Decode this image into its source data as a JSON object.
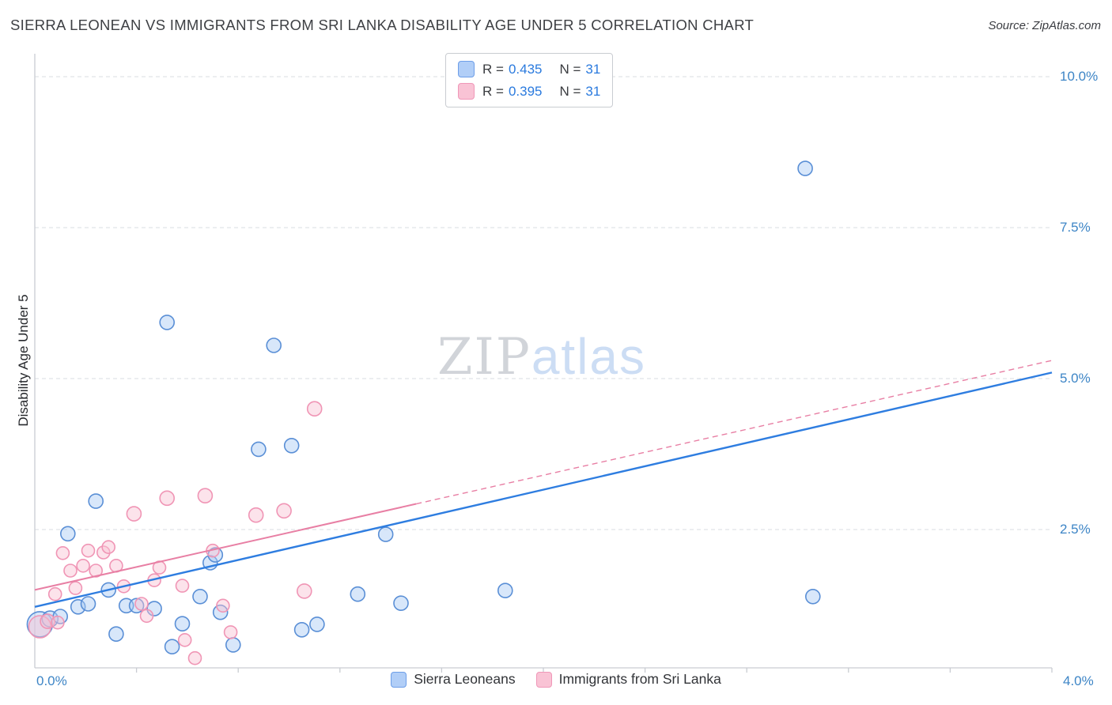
{
  "header": {
    "title": "SIERRA LEONEAN VS IMMIGRANTS FROM SRI LANKA DISABILITY AGE UNDER 5 CORRELATION CHART",
    "source": "Source: ZipAtlas.com"
  },
  "watermark": {
    "zip": "ZIP",
    "atlas": "atlas"
  },
  "axes": {
    "y_label": "Disability Age Under 5",
    "y_ticks": [
      {
        "label": "10.0%",
        "value": 10
      },
      {
        "label": "7.5%",
        "value": 7.5
      },
      {
        "label": "5.0%",
        "value": 5
      },
      {
        "label": "2.5%",
        "value": 2.5
      }
    ],
    "x_min_label": "0.0%",
    "x_max_label": "4.0%"
  },
  "correlation_legend": {
    "rows": [
      {
        "series": "Sierra Leoneans",
        "r_label": "R =",
        "r_value": "0.435",
        "n_label": "N =",
        "n_value": "31"
      },
      {
        "series": "Immigrants from Sri Lanka",
        "r_label": "R =",
        "r_value": "0.395",
        "n_label": "N =",
        "n_value": "31"
      }
    ]
  },
  "series_legend": [
    {
      "label": "Sierra Leoneans"
    },
    {
      "label": "Immigrants from Sri Lanka"
    }
  ],
  "colors": {
    "tick_label_blue": "#3d85c6",
    "legend_value_blue": "#2a7ade",
    "blue_point_fill": "#a9c9f4",
    "blue_point_stroke": "#5a8fd6",
    "blue_trend": "#2e7de0",
    "pink_point_fill": "#f8c0d2",
    "pink_point_stroke": "#f095b5",
    "pink_trend": "#e87fa4",
    "grid_gray": "#dadde2"
  },
  "chart_data": {
    "type": "scatter",
    "title": "SIERRA LEONEAN VS IMMIGRANTS FROM SRI LANKA DISABILITY AGE UNDER 5 CORRELATION CHART",
    "xlabel": "",
    "ylabel": "Disability Age Under 5",
    "xlim": [
      0,
      4
    ],
    "ylim": [
      0,
      10.4
    ],
    "x_tick_labels": [
      "0.0%",
      "4.0%"
    ],
    "y_tick_labels": [
      "2.5%",
      "5.0%",
      "7.5%",
      "10.0%"
    ],
    "grid": "horizontal-dashed",
    "legend_position": "bottom-center",
    "units": "x = population share %, y = disability age under 5 %, third value = marker radius px",
    "series": [
      {
        "name": "Sierra Leoneans",
        "r": 0.435,
        "n": 31,
        "point_fill": "#a9c9f4",
        "point_stroke": "#5a8fd6",
        "trend_color": "#2e7de0",
        "trend": {
          "x0": 0,
          "y0": 1.22,
          "x1": 4,
          "y1": 5.1,
          "style": "solid"
        },
        "points": [
          [
            0.02,
            0.93,
            16
          ],
          [
            0.06,
            1.02,
            10
          ],
          [
            0.1,
            1.06,
            9
          ],
          [
            0.13,
            2.43,
            9
          ],
          [
            0.17,
            1.22,
            9
          ],
          [
            0.21,
            1.27,
            9
          ],
          [
            0.24,
            2.97,
            9
          ],
          [
            0.29,
            1.5,
            9
          ],
          [
            0.32,
            0.77,
            9
          ],
          [
            0.36,
            1.24,
            9
          ],
          [
            0.4,
            1.24,
            9
          ],
          [
            0.47,
            1.19,
            9
          ],
          [
            0.52,
            5.93,
            9
          ],
          [
            0.54,
            0.56,
            9
          ],
          [
            0.58,
            0.94,
            9
          ],
          [
            0.65,
            1.39,
            9
          ],
          [
            0.69,
            1.95,
            9
          ],
          [
            0.71,
            2.08,
            9
          ],
          [
            0.73,
            1.13,
            9
          ],
          [
            0.78,
            0.59,
            9
          ],
          [
            0.88,
            3.83,
            9
          ],
          [
            0.94,
            5.55,
            9
          ],
          [
            1.01,
            3.89,
            9
          ],
          [
            1.05,
            0.84,
            9
          ],
          [
            1.11,
            0.93,
            9
          ],
          [
            1.27,
            1.43,
            9
          ],
          [
            1.38,
            2.42,
            9
          ],
          [
            1.44,
            1.28,
            9
          ],
          [
            1.85,
            1.49,
            9
          ],
          [
            3.03,
            8.48,
            9
          ],
          [
            3.06,
            1.39,
            9
          ]
        ]
      },
      {
        "name": "Immigrants from Sri Lanka",
        "r": 0.395,
        "n": 31,
        "point_fill": "#f8c0d2",
        "point_stroke": "#f095b5",
        "trend_color": "#e87fa4",
        "trend": {
          "x0": 0,
          "y0": 1.5,
          "x1": 4,
          "y1": 5.3,
          "style": "solid-then-dashed",
          "solid_until_x": 1.5
        },
        "points": [
          [
            0.02,
            0.89,
            14
          ],
          [
            0.05,
            0.98,
            9
          ],
          [
            0.08,
            1.43,
            8
          ],
          [
            0.09,
            0.96,
            8
          ],
          [
            0.11,
            2.11,
            8
          ],
          [
            0.14,
            1.82,
            8
          ],
          [
            0.16,
            1.53,
            8
          ],
          [
            0.19,
            1.9,
            8
          ],
          [
            0.21,
            2.15,
            8
          ],
          [
            0.24,
            1.82,
            8
          ],
          [
            0.27,
            2.12,
            8
          ],
          [
            0.29,
            2.21,
            8
          ],
          [
            0.32,
            1.9,
            8
          ],
          [
            0.35,
            1.56,
            8
          ],
          [
            0.39,
            2.76,
            9
          ],
          [
            0.42,
            1.27,
            8
          ],
          [
            0.44,
            1.07,
            8
          ],
          [
            0.47,
            1.66,
            8
          ],
          [
            0.49,
            1.87,
            8
          ],
          [
            0.52,
            3.02,
            9
          ],
          [
            0.58,
            1.57,
            8
          ],
          [
            0.59,
            0.67,
            8
          ],
          [
            0.63,
            0.37,
            8
          ],
          [
            0.67,
            3.06,
            9
          ],
          [
            0.7,
            2.15,
            8
          ],
          [
            0.74,
            1.24,
            8
          ],
          [
            0.77,
            0.8,
            8
          ],
          [
            0.87,
            2.74,
            9
          ],
          [
            0.98,
            2.81,
            9
          ],
          [
            1.06,
            1.48,
            9
          ],
          [
            1.1,
            4.5,
            9
          ]
        ]
      }
    ]
  }
}
